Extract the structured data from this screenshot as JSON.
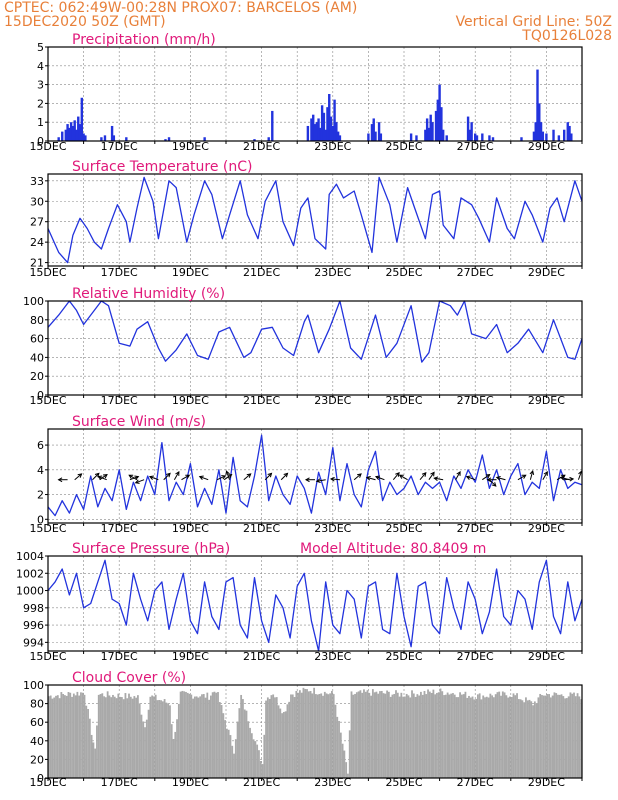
{
  "header": {
    "line1": "CPTEC:  062:49W-00:28N   PROX07: BARCELOS (AM)",
    "line2_left": "15DEC2020 50Z (GMT)",
    "line2_right": "Vertical Grid Line: 50Z",
    "line3_right": "TQ0126L028"
  },
  "colors": {
    "header": "#e8803a",
    "title": "#e0197a",
    "line": "#2233dd",
    "bar": "#2233dd",
    "cloud": "#a9a9a9"
  },
  "chart_data": [
    {
      "type": "bar",
      "title": "Precipitation (mm/h)",
      "ylim": [
        0,
        5
      ],
      "yticks": [
        0,
        1,
        2,
        3,
        4,
        5
      ],
      "xticks": [
        "15DEC",
        "17DEC",
        "19DEC",
        "21DEC",
        "23DEC",
        "25DEC",
        "27DEC",
        "29DEC"
      ],
      "x_unit": "day offset from 15DEC",
      "bars": [
        [
          0.3,
          0.2
        ],
        [
          0.4,
          0.5
        ],
        [
          0.5,
          0.6
        ],
        [
          0.55,
          0.9
        ],
        [
          0.6,
          0.7
        ],
        [
          0.65,
          1.0
        ],
        [
          0.7,
          0.8
        ],
        [
          0.75,
          1.1
        ],
        [
          0.8,
          0.6
        ],
        [
          0.85,
          1.3
        ],
        [
          0.9,
          0.9
        ],
        [
          0.95,
          2.3
        ],
        [
          1.0,
          0.4
        ],
        [
          1.05,
          0.3
        ],
        [
          1.5,
          0.2
        ],
        [
          1.6,
          0.3
        ],
        [
          1.8,
          0.8
        ],
        [
          1.85,
          0.3
        ],
        [
          2.2,
          0.2
        ],
        [
          3.3,
          0.1
        ],
        [
          3.4,
          0.2
        ],
        [
          4.4,
          0.2
        ],
        [
          5.8,
          0.1
        ],
        [
          6.2,
          0.2
        ],
        [
          6.3,
          1.6
        ],
        [
          7.3,
          0.8
        ],
        [
          7.4,
          1.2
        ],
        [
          7.45,
          1.4
        ],
        [
          7.5,
          0.9
        ],
        [
          7.55,
          1.0
        ],
        [
          7.6,
          1.2
        ],
        [
          7.65,
          0.7
        ],
        [
          7.7,
          1.9
        ],
        [
          7.75,
          1.5
        ],
        [
          7.8,
          0.6
        ],
        [
          7.85,
          1.8
        ],
        [
          7.9,
          2.5
        ],
        [
          7.95,
          1.3
        ],
        [
          8.0,
          0.8
        ],
        [
          8.05,
          2.2
        ],
        [
          8.1,
          1.0
        ],
        [
          8.15,
          0.5
        ],
        [
          8.2,
          0.3
        ],
        [
          9.0,
          0.4
        ],
        [
          9.1,
          0.9
        ],
        [
          9.15,
          1.2
        ],
        [
          9.2,
          0.5
        ],
        [
          9.3,
          1.0
        ],
        [
          9.35,
          0.4
        ],
        [
          10.2,
          0.4
        ],
        [
          10.35,
          0.3
        ],
        [
          10.6,
          0.6
        ],
        [
          10.65,
          1.2
        ],
        [
          10.7,
          0.7
        ],
        [
          10.75,
          1.4
        ],
        [
          10.8,
          1.0
        ],
        [
          10.9,
          1.6
        ],
        [
          10.95,
          2.2
        ],
        [
          11.0,
          3.0
        ],
        [
          11.05,
          1.8
        ],
        [
          11.1,
          0.6
        ],
        [
          11.2,
          0.3
        ],
        [
          11.8,
          1.3
        ],
        [
          11.85,
          0.6
        ],
        [
          11.9,
          1.0
        ],
        [
          12.0,
          0.4
        ],
        [
          12.05,
          0.3
        ],
        [
          12.2,
          0.4
        ],
        [
          12.4,
          0.3
        ],
        [
          12.5,
          0.2
        ],
        [
          13.3,
          0.2
        ],
        [
          13.65,
          0.5
        ],
        [
          13.7,
          1.0
        ],
        [
          13.75,
          3.8
        ],
        [
          13.8,
          2.0
        ],
        [
          13.85,
          1.0
        ],
        [
          13.9,
          0.5
        ],
        [
          14.0,
          0.4
        ],
        [
          14.2,
          0.6
        ],
        [
          14.35,
          0.3
        ],
        [
          14.5,
          0.6
        ],
        [
          14.6,
          1.0
        ],
        [
          14.65,
          0.8
        ],
        [
          14.7,
          0.4
        ]
      ]
    },
    {
      "type": "line",
      "title": "Surface Temperature (nC)",
      "ylim": [
        20.5,
        34
      ],
      "yticks": [
        21,
        24,
        27,
        30,
        33
      ],
      "xticks": [
        "15DEC",
        "17DEC",
        "19DEC",
        "21DEC",
        "23DEC",
        "25DEC",
        "27DEC",
        "29DEC"
      ],
      "x": [
        0,
        0.3,
        0.55,
        0.7,
        0.9,
        1.1,
        1.3,
        1.5,
        1.7,
        1.95,
        2.2,
        2.3,
        2.5,
        2.7,
        2.95,
        3.1,
        3.4,
        3.6,
        3.9,
        4.1,
        4.4,
        4.6,
        4.9,
        5.1,
        5.4,
        5.6,
        5.9,
        6.1,
        6.4,
        6.6,
        6.9,
        7.1,
        7.3,
        7.5,
        7.8,
        7.9,
        8.1,
        8.3,
        8.6,
        8.8,
        9.1,
        9.3,
        9.6,
        9.8,
        10.1,
        10.3,
        10.6,
        10.8,
        11.0,
        11.1,
        11.4,
        11.6,
        11.9,
        12.1,
        12.4,
        12.6,
        12.9,
        13.1,
        13.4,
        13.6,
        13.9,
        14.1,
        14.3,
        14.5,
        14.8,
        15.0
      ],
      "values": [
        26,
        22.5,
        21,
        25,
        27.5,
        26,
        24,
        23,
        26,
        29.5,
        27,
        24,
        29,
        33.5,
        30,
        24.5,
        33,
        32,
        24,
        28,
        33,
        31,
        24.5,
        28,
        33,
        28,
        24.5,
        30,
        33,
        27,
        23.5,
        29,
        30.5,
        24.5,
        23,
        31,
        32.5,
        30.5,
        31.5,
        28,
        22.5,
        33.5,
        29.5,
        24,
        32,
        29,
        24.5,
        31,
        31.5,
        26.5,
        24.5,
        30.5,
        29.5,
        27.5,
        24,
        30.5,
        26,
        24.5,
        30,
        28,
        24,
        29,
        30.5,
        27,
        33,
        30
      ]
    },
    {
      "type": "line",
      "title": "Relative Humidity (%)",
      "ylim": [
        0,
        100
      ],
      "yticks": [
        0,
        20,
        40,
        60,
        80,
        100
      ],
      "xticks": [
        "15DEC",
        "17DEC",
        "19DEC",
        "21DEC",
        "23DEC",
        "25DEC",
        "27DEC",
        "29DEC"
      ],
      "x": [
        0,
        0.3,
        0.6,
        0.8,
        1.0,
        1.3,
        1.5,
        1.7,
        2.0,
        2.3,
        2.5,
        2.8,
        3.1,
        3.3,
        3.6,
        3.9,
        4.2,
        4.5,
        4.8,
        5.1,
        5.5,
        5.7,
        6.0,
        6.3,
        6.6,
        6.9,
        7.2,
        7.3,
        7.6,
        7.9,
        8.2,
        8.5,
        8.8,
        9.2,
        9.5,
        9.8,
        10.2,
        10.5,
        10.7,
        11.0,
        11.3,
        11.5,
        11.7,
        11.9,
        12.3,
        12.6,
        12.9,
        13.2,
        13.5,
        13.9,
        14.2,
        14.6,
        14.8,
        15.0
      ],
      "values": [
        72,
        85,
        100,
        90,
        75,
        90,
        100,
        95,
        55,
        52,
        70,
        78,
        50,
        36,
        48,
        65,
        42,
        38,
        67,
        72,
        40,
        45,
        70,
        72,
        50,
        42,
        78,
        85,
        45,
        70,
        100,
        50,
        38,
        85,
        40,
        55,
        95,
        35,
        45,
        100,
        95,
        85,
        100,
        65,
        60,
        75,
        45,
        55,
        70,
        45,
        80,
        40,
        38,
        60
      ]
    },
    {
      "type": "line",
      "title": "Surface Wind (m/s)",
      "ylim": [
        -0.3,
        7.3
      ],
      "yticks": [
        0,
        2,
        4,
        6
      ],
      "xticks": [
        "15DEC",
        "17DEC",
        "19DEC",
        "21DEC",
        "23DEC",
        "25DEC",
        "27DEC",
        "29DEC"
      ],
      "x": [
        0,
        0.2,
        0.4,
        0.6,
        0.8,
        1.0,
        1.2,
        1.4,
        1.6,
        1.8,
        2.0,
        2.2,
        2.4,
        2.6,
        2.8,
        3.0,
        3.2,
        3.4,
        3.6,
        3.8,
        4.0,
        4.2,
        4.4,
        4.6,
        4.8,
        5.0,
        5.2,
        5.4,
        5.6,
        5.8,
        6.0,
        6.2,
        6.4,
        6.6,
        6.8,
        7.0,
        7.2,
        7.4,
        7.6,
        7.8,
        8.0,
        8.2,
        8.4,
        8.6,
        8.8,
        9.0,
        9.2,
        9.4,
        9.6,
        9.8,
        10.0,
        10.2,
        10.4,
        10.6,
        10.8,
        11.0,
        11.2,
        11.4,
        11.6,
        11.8,
        12.0,
        12.2,
        12.4,
        12.6,
        12.8,
        13.0,
        13.2,
        13.4,
        13.6,
        13.8,
        14.0,
        14.2,
        14.4,
        14.6,
        14.8,
        15.0
      ],
      "values": [
        1.0,
        0.3,
        1.5,
        0.5,
        2.0,
        0.8,
        3.5,
        1.0,
        2.5,
        1.5,
        4.0,
        0.8,
        3.0,
        1.5,
        3.5,
        2.0,
        6.2,
        1.5,
        3.0,
        2.0,
        4.5,
        1.0,
        2.5,
        1.2,
        4.0,
        0.5,
        5.0,
        1.5,
        1.0,
        3.5,
        6.8,
        1.5,
        3.5,
        2.0,
        1.2,
        3.5,
        2.5,
        0.5,
        3.8,
        2.0,
        5.8,
        1.5,
        4.5,
        2.0,
        1.0,
        4.0,
        5.5,
        1.5,
        3.0,
        2.0,
        2.5,
        3.5,
        2.0,
        3.0,
        2.5,
        3.0,
        1.5,
        3.5,
        2.5,
        4.0,
        3.0,
        5.2,
        2.5,
        4.0,
        2.0,
        3.5,
        4.5,
        2.0,
        3.0,
        2.5,
        5.5,
        1.5,
        4.0,
        2.5,
        3.0,
        2.8
      ],
      "arrows": [
        [
          0.55,
          180
        ],
        [
          0.75,
          -40
        ],
        [
          1.25,
          -45
        ],
        [
          1.45,
          -35
        ],
        [
          1.65,
          200
        ],
        [
          2.3,
          -20
        ],
        [
          2.5,
          210
        ],
        [
          2.7,
          160
        ],
        [
          3.1,
          200
        ],
        [
          3.25,
          -45
        ],
        [
          3.55,
          -60
        ],
        [
          3.75,
          -30
        ],
        [
          4.5,
          200
        ],
        [
          4.75,
          -25
        ],
        [
          4.95,
          -35
        ],
        [
          5.1,
          250
        ],
        [
          5.5,
          -40
        ],
        [
          6.1,
          -45
        ],
        [
          6.55,
          -45
        ],
        [
          7.5,
          180
        ],
        [
          7.8,
          170
        ],
        [
          8.2,
          185
        ],
        [
          8.6,
          -40
        ],
        [
          9.2,
          195
        ],
        [
          9.45,
          200
        ],
        [
          9.7,
          -50
        ],
        [
          10.1,
          210
        ],
        [
          10.45,
          -50
        ],
        [
          10.7,
          -55
        ],
        [
          11.1,
          190
        ],
        [
          11.45,
          -60
        ],
        [
          12.0,
          200
        ],
        [
          12.2,
          -35
        ],
        [
          12.4,
          45
        ],
        [
          12.6,
          180
        ],
        [
          12.85,
          195
        ],
        [
          13.2,
          -30
        ],
        [
          13.55,
          -75
        ],
        [
          13.9,
          -60
        ],
        [
          14.3,
          -30
        ],
        [
          14.5,
          -5
        ],
        [
          14.65,
          195
        ],
        [
          14.9,
          -70
        ]
      ]
    },
    {
      "type": "line",
      "title": "Surface Pressure (hPa)",
      "subtitle": "Model Altitude: 80.8409 m",
      "ylim": [
        993,
        1004
      ],
      "yticks": [
        994,
        996,
        998,
        1000,
        1002,
        1004
      ],
      "xticks": [
        "15DEC",
        "17DEC",
        "19DEC",
        "21DEC",
        "23DEC",
        "25DEC",
        "27DEC",
        "29DEC"
      ],
      "x": [
        0,
        0.2,
        0.4,
        0.6,
        0.8,
        1.0,
        1.2,
        1.4,
        1.6,
        1.8,
        2.0,
        2.2,
        2.4,
        2.6,
        2.8,
        3.0,
        3.2,
        3.4,
        3.6,
        3.8,
        4.0,
        4.2,
        4.4,
        4.6,
        4.8,
        5.0,
        5.2,
        5.4,
        5.6,
        5.8,
        6.0,
        6.2,
        6.4,
        6.6,
        6.8,
        7.0,
        7.2,
        7.4,
        7.6,
        7.8,
        8.0,
        8.2,
        8.4,
        8.6,
        8.8,
        9.0,
        9.2,
        9.4,
        9.6,
        9.8,
        10.0,
        10.2,
        10.4,
        10.6,
        10.8,
        11.0,
        11.2,
        11.4,
        11.6,
        11.8,
        12.0,
        12.2,
        12.4,
        12.6,
        12.8,
        13.0,
        13.2,
        13.4,
        13.6,
        13.8,
        14.0,
        14.2,
        14.4,
        14.6,
        14.8,
        15.0
      ],
      "values": [
        1000,
        1001,
        1002.5,
        999.5,
        1002,
        998,
        998.5,
        1001,
        1003.5,
        999,
        998.5,
        996,
        1002,
        999,
        996.5,
        1000,
        1001,
        995.5,
        999,
        1002,
        996.5,
        995,
        1001,
        997,
        995.5,
        1001,
        1001.5,
        996,
        994.5,
        1001.5,
        996.5,
        994,
        999.5,
        998,
        994.5,
        1000.5,
        1002,
        996.5,
        993,
        1001,
        996,
        995,
        1000,
        999,
        994.5,
        1000.5,
        1001,
        995.5,
        995,
        1002,
        997,
        993.5,
        1000.5,
        1001,
        996,
        995,
        1001.5,
        998,
        995.5,
        1001,
        999,
        995,
        997.5,
        1002.5,
        997,
        996,
        1000,
        999,
        995.5,
        1001,
        1003.5,
        997,
        995,
        1001,
        996.5,
        999
      ]
    },
    {
      "type": "bar",
      "title": "Cloud Cover (%)",
      "ylim": [
        0,
        100
      ],
      "yticks": [
        0,
        20,
        40,
        60,
        80,
        100
      ],
      "xticks": [
        "15DEC",
        "17DEC",
        "19DEC",
        "21DEC",
        "23DEC",
        "25DEC",
        "27DEC",
        "29DEC"
      ],
      "x_unit": "day offset from 15DEC",
      "profile": [
        [
          0,
          88
        ],
        [
          1.0,
          92
        ],
        [
          1.3,
          28
        ],
        [
          1.4,
          90
        ],
        [
          2.5,
          87
        ],
        [
          2.7,
          55
        ],
        [
          2.85,
          88
        ],
        [
          3.4,
          80
        ],
        [
          3.5,
          40
        ],
        [
          3.7,
          90
        ],
        [
          4.5,
          88
        ],
        [
          4.7,
          95
        ],
        [
          5.2,
          30
        ],
        [
          5.4,
          88
        ],
        [
          6.0,
          15
        ],
        [
          6.1,
          85
        ],
        [
          6.3,
          92
        ],
        [
          6.6,
          70
        ],
        [
          6.8,
          90
        ],
        [
          7.3,
          95
        ],
        [
          8.0,
          90
        ],
        [
          8.4,
          5
        ],
        [
          8.5,
          90
        ],
        [
          9.0,
          92
        ],
        [
          10.0,
          90
        ],
        [
          11.0,
          93
        ],
        [
          12.0,
          88
        ],
        [
          13.0,
          90
        ],
        [
          13.6,
          80
        ],
        [
          13.9,
          90
        ],
        [
          15.0,
          88
        ]
      ]
    }
  ]
}
